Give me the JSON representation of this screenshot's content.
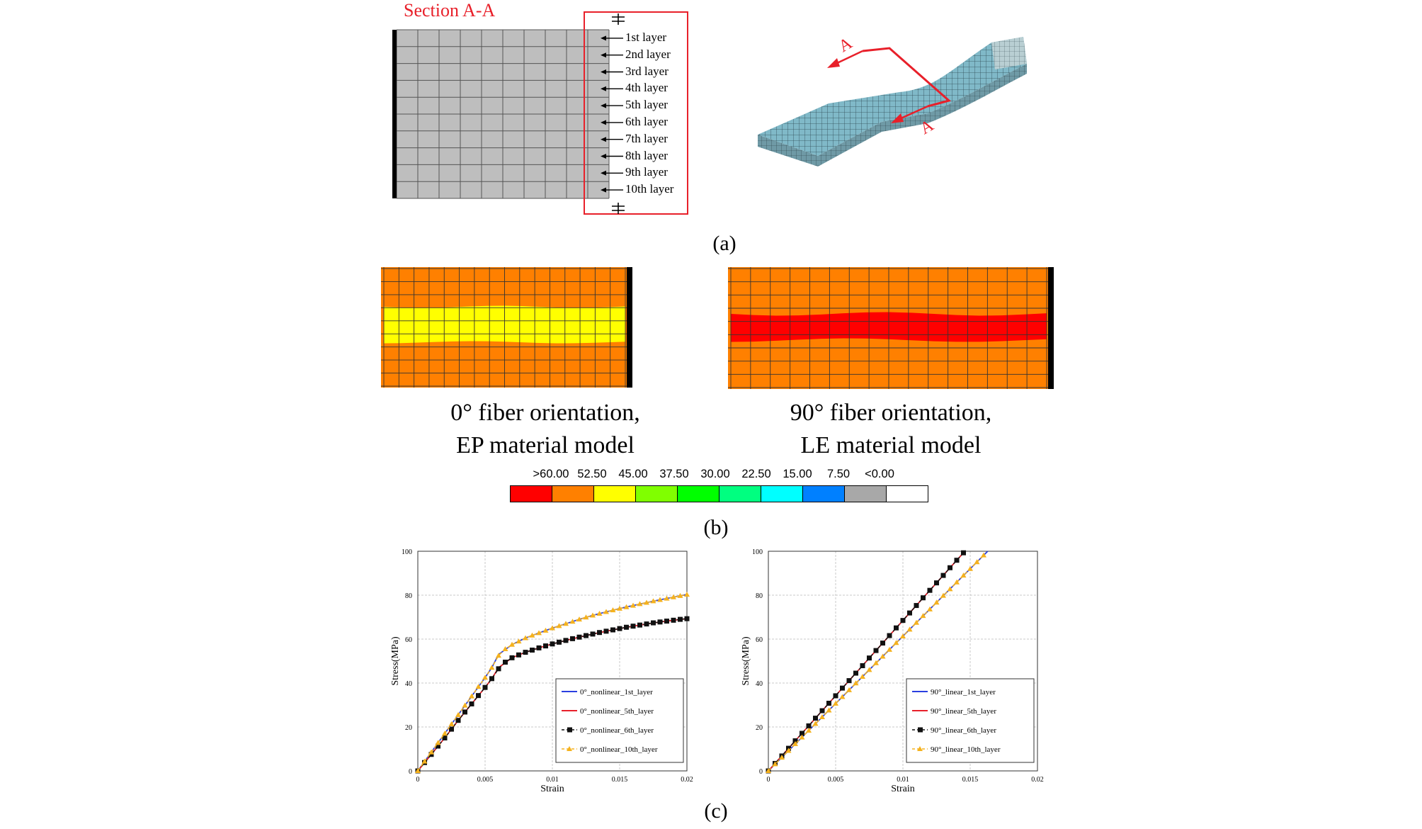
{
  "panel_a": {
    "section_title": "Section A-A",
    "layers": [
      "1st layer",
      "2nd layer",
      "3rd layer",
      "4th layer",
      "5th layer",
      "6th layer",
      "7th layer",
      "8th layer",
      "9th layer",
      "10th layer"
    ],
    "cut_label_top": "A",
    "cut_label_bottom": "A",
    "caption": "(a)",
    "colors": {
      "mesh": "#bebebe",
      "highlight": "#e8202a",
      "specimen": "#7fb8c8"
    }
  },
  "panel_b": {
    "left": {
      "line1": "0° fiber orientation,",
      "line2": "EP material model",
      "band_color": "#ffff00"
    },
    "right": {
      "line1": "90° fiber orientation,",
      "line2": "LE material model",
      "band_color": "#ff0000"
    },
    "base_color": "#ff8000",
    "legend": {
      "labels": [
        ">60.00",
        "52.50",
        "45.00",
        "37.50",
        "30.00",
        "22.50",
        "15.00",
        "7.50",
        "<0.00"
      ],
      "colors": [
        "#ff0000",
        "#ff8000",
        "#ffff00",
        "#80ff00",
        "#00ff00",
        "#00ff80",
        "#00ffff",
        "#0080ff",
        "#a8a8a8",
        "#ffffff"
      ]
    },
    "caption": "(b)"
  },
  "panel_c": {
    "caption": "(c)",
    "chart_data": [
      {
        "type": "line",
        "xlabel": "Strain",
        "ylabel": "Stress(MPa)",
        "xlim": [
          0,
          0.02
        ],
        "ylim": [
          0,
          100
        ],
        "xticks": [
          "0",
          "0.005",
          "0.01",
          "0.015",
          "0.02"
        ],
        "yticks": [
          "0",
          "20",
          "40",
          "60",
          "80",
          "100"
        ],
        "grid": true,
        "legend_position": "bottom-right",
        "series": [
          {
            "name": "0°_nonlinear_1st_layer",
            "color": "#2a3fe0",
            "style": "solid",
            "x": [
              0,
              0.001,
              0.002,
              0.003,
              0.004,
              0.005,
              0.0055,
              0.006,
              0.007,
              0.008,
              0.009,
              0.01,
              0.011,
              0.012,
              0.013,
              0.014,
              0.015,
              0.016,
              0.017,
              0.018,
              0.019,
              0.02
            ],
            "y": [
              0,
              8.5,
              17,
              25.5,
              34,
              42.5,
              47,
              53,
              57.5,
              60.5,
              62.8,
              65,
              67,
              69,
              70.8,
              72.4,
              73.9,
              75.3,
              76.6,
              77.9,
              79.1,
              80.3
            ]
          },
          {
            "name": "0°_nonlinear_5th_layer",
            "color": "#e8202a",
            "style": "solid",
            "x": [
              0,
              0.001,
              0.002,
              0.003,
              0.004,
              0.005,
              0.0055,
              0.006,
              0.007,
              0.008,
              0.009,
              0.01,
              0.011,
              0.012,
              0.013,
              0.014,
              0.015,
              0.016,
              0.017,
              0.018,
              0.019,
              0.02
            ],
            "y": [
              0,
              7.5,
              15,
              23,
              30.5,
              38,
              42,
              47,
              51.5,
              54,
              56,
              57.8,
              59.4,
              60.9,
              62.3,
              63.6,
              64.8,
              65.9,
              66.9,
              67.8,
              68.6,
              69.3
            ]
          },
          {
            "name": "0°_nonlinear_6th_layer",
            "color": "#111111",
            "style": "dashed-square",
            "x": [
              0,
              0.0005,
              0.001,
              0.0015,
              0.002,
              0.0025,
              0.003,
              0.0035,
              0.004,
              0.0045,
              0.005,
              0.0055,
              0.006,
              0.0065,
              0.007,
              0.0075,
              0.008,
              0.0085,
              0.009,
              0.0095,
              0.01,
              0.0105,
              0.011,
              0.0115,
              0.012,
              0.0125,
              0.013,
              0.0135,
              0.014,
              0.0145,
              0.015,
              0.0155,
              0.016,
              0.0165,
              0.017,
              0.0175,
              0.018,
              0.0185,
              0.019,
              0.0195,
              0.02
            ],
            "y": [
              0,
              3.8,
              7.5,
              11.3,
              15,
              19,
              23,
              26.8,
              30.5,
              34.3,
              38,
              42,
              46.5,
              49.5,
              51.5,
              52.8,
              54,
              55,
              56,
              56.9,
              57.8,
              58.6,
              59.4,
              60.2,
              60.9,
              61.6,
              62.3,
              63,
              63.6,
              64.2,
              64.8,
              65.4,
              65.9,
              66.4,
              66.9,
              67.4,
              67.8,
              68.2,
              68.6,
              69,
              69.3
            ]
          },
          {
            "name": "0°_nonlinear_10th_layer",
            "color": "#f5b21e",
            "style": "dashed-triangle",
            "x": [
              0,
              0.0005,
              0.001,
              0.0015,
              0.002,
              0.0025,
              0.003,
              0.0035,
              0.004,
              0.0045,
              0.005,
              0.0055,
              0.006,
              0.0065,
              0.007,
              0.0075,
              0.008,
              0.0085,
              0.009,
              0.0095,
              0.01,
              0.0105,
              0.011,
              0.0115,
              0.012,
              0.0125,
              0.013,
              0.0135,
              0.014,
              0.0145,
              0.015,
              0.0155,
              0.016,
              0.0165,
              0.017,
              0.0175,
              0.018,
              0.0185,
              0.019,
              0.0195,
              0.02
            ],
            "y": [
              0,
              4.3,
              8.5,
              12.8,
              17,
              21.3,
              25.5,
              29.8,
              34,
              38.3,
              42.5,
              47,
              52.5,
              55.5,
              57.5,
              59,
              60.5,
              61.7,
              62.8,
              63.9,
              65,
              66,
              67,
              68,
              69,
              69.9,
              70.8,
              71.6,
              72.4,
              73.2,
              73.9,
              74.6,
              75.3,
              76,
              76.6,
              77.3,
              77.9,
              78.5,
              79.1,
              79.7,
              80.3
            ]
          }
        ]
      },
      {
        "type": "line",
        "xlabel": "Strain",
        "ylabel": "Stress(MPa)",
        "xlim": [
          0,
          0.02
        ],
        "ylim": [
          0,
          100
        ],
        "xticks": [
          "0",
          "0.005",
          "0.01",
          "0.015",
          "0.02"
        ],
        "yticks": [
          "0",
          "20",
          "40",
          "60",
          "80",
          "100"
        ],
        "grid": true,
        "legend_position": "bottom-right",
        "series": [
          {
            "name": "90°_linear_1st_layer",
            "color": "#2a3fe0",
            "style": "solid",
            "x": [
              0,
              0.0163
            ],
            "y": [
              0,
              100
            ]
          },
          {
            "name": "90°_linear_5th_layer",
            "color": "#e8202a",
            "style": "solid",
            "x": [
              0,
              0.0146
            ],
            "y": [
              0,
              100
            ]
          },
          {
            "name": "90°_linear_6th_layer",
            "color": "#111111",
            "style": "dashed-square",
            "x": [
              0,
              0.0005,
              0.001,
              0.0015,
              0.002,
              0.0025,
              0.003,
              0.0035,
              0.004,
              0.0045,
              0.005,
              0.0055,
              0.006,
              0.0065,
              0.007,
              0.0075,
              0.008,
              0.0085,
              0.009,
              0.0095,
              0.01,
              0.0105,
              0.011,
              0.0115,
              0.012,
              0.0125,
              0.013,
              0.0135,
              0.014,
              0.0145
            ],
            "y": [
              0,
              3.4,
              6.8,
              10.3,
              13.7,
              17.1,
              20.5,
              24,
              27.4,
              30.8,
              34.2,
              37.7,
              41.1,
              44.5,
              47.9,
              51.4,
              54.8,
              58.2,
              61.6,
              65.1,
              68.5,
              71.9,
              75.3,
              78.8,
              82.2,
              85.6,
              89,
              92.5,
              95.9,
              99.3
            ]
          },
          {
            "name": "90°_linear_10th_layer",
            "color": "#f5b21e",
            "style": "dashed-triangle",
            "x": [
              0,
              0.0005,
              0.001,
              0.0015,
              0.002,
              0.0025,
              0.003,
              0.0035,
              0.004,
              0.0045,
              0.005,
              0.0055,
              0.006,
              0.0065,
              0.007,
              0.0075,
              0.008,
              0.0085,
              0.009,
              0.0095,
              0.01,
              0.0105,
              0.011,
              0.0115,
              0.012,
              0.0125,
              0.013,
              0.0135,
              0.014,
              0.0145,
              0.015,
              0.0155,
              0.016
            ],
            "y": [
              0,
              3.1,
              6.1,
              9.2,
              12.3,
              15.3,
              18.4,
              21.5,
              24.5,
              27.6,
              30.7,
              33.7,
              36.8,
              39.9,
              42.9,
              46,
              49.1,
              52.1,
              55.2,
              58.3,
              61.3,
              64.4,
              67.5,
              70.6,
              73.6,
              76.7,
              79.8,
              82.8,
              85.9,
              89,
              92,
              95.1,
              98.2
            ]
          }
        ]
      }
    ]
  }
}
